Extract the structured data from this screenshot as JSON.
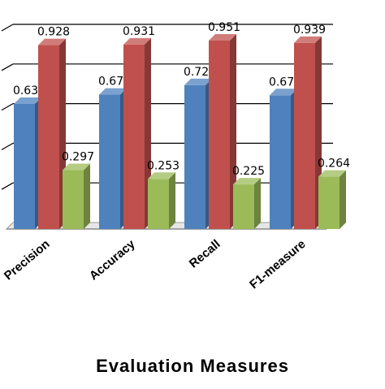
{
  "chart_data": {
    "type": "bar",
    "categories": [
      "Precision",
      "Accuracy",
      "Recall",
      "F1-measure"
    ],
    "series": [
      {
        "values": [
          0.631,
          0.678,
          0.726,
          0.675
        ],
        "color": "#4f81bd"
      },
      {
        "values": [
          0.928,
          0.931,
          0.951,
          0.939
        ],
        "color": "#c0504d"
      },
      {
        "values": [
          0.297,
          0.253,
          0.225,
          0.264
        ],
        "color": "#9bbb59"
      }
    ],
    "xlabel": "Evaluation Measures",
    "ylim": [
      0,
      1
    ],
    "grid": true,
    "three_d": true
  }
}
